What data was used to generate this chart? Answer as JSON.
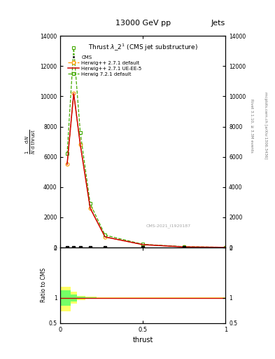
{
  "title": "13000 GeV pp",
  "top_right_label": "Jets",
  "plot_title": "Thrust $\\lambda\\_2^1$ (CMS jet substructure)",
  "right_label_rivet": "Rivet 3.1.10, ≥ 3.3M events",
  "right_label_arxiv": "mcplots.cern.ch [arXiv:1306.3436]",
  "cms_label": "CMS-2021_I1920187",
  "xlabel": "thrust",
  "main_xlim": [
    0,
    1
  ],
  "main_ylim": [
    0,
    14000
  ],
  "ratio_ylim": [
    0.5,
    2.0
  ],
  "x_pts": [
    0.04,
    0.08,
    0.12,
    0.18,
    0.27,
    0.5,
    0.75,
    1.0
  ],
  "y_hdefault": [
    5500,
    10200,
    6800,
    2600,
    700,
    190,
    40,
    8
  ],
  "y_hueee5": [
    5500,
    10200,
    6800,
    2600,
    700,
    190,
    40,
    8
  ],
  "y_h721": [
    6200,
    13200,
    7600,
    2900,
    820,
    210,
    55,
    12
  ],
  "x_cms": [
    0.04,
    0.08,
    0.12,
    0.18,
    0.27,
    0.5,
    0.75
  ],
  "y_cms": [
    0,
    0,
    0,
    0,
    0,
    0,
    0
  ],
  "herwig_default_color": "#ff9900",
  "herwig_ueee5_color": "#cc0000",
  "herwig721_color": "#44aa00",
  "cms_color": "#000000",
  "yticks_main": [
    0,
    2000,
    4000,
    6000,
    8000,
    10000,
    12000,
    14000
  ],
  "ratio_x_bins": [
    0.0,
    0.06,
    0.1,
    0.15,
    0.22,
    0.35,
    0.65,
    0.88,
    1.0
  ],
  "ratio_yellow_lo": [
    0.73,
    0.88,
    0.96,
    0.98,
    0.99,
    0.99,
    0.99,
    0.99
  ],
  "ratio_yellow_hi": [
    1.22,
    1.12,
    1.04,
    1.02,
    1.01,
    1.01,
    1.01,
    1.01
  ],
  "ratio_green_lo": [
    0.85,
    0.93,
    0.98,
    0.99,
    0.995,
    0.995,
    0.995,
    0.995
  ],
  "ratio_green_hi": [
    1.15,
    1.07,
    1.02,
    1.01,
    1.005,
    1.005,
    1.005,
    1.005
  ]
}
